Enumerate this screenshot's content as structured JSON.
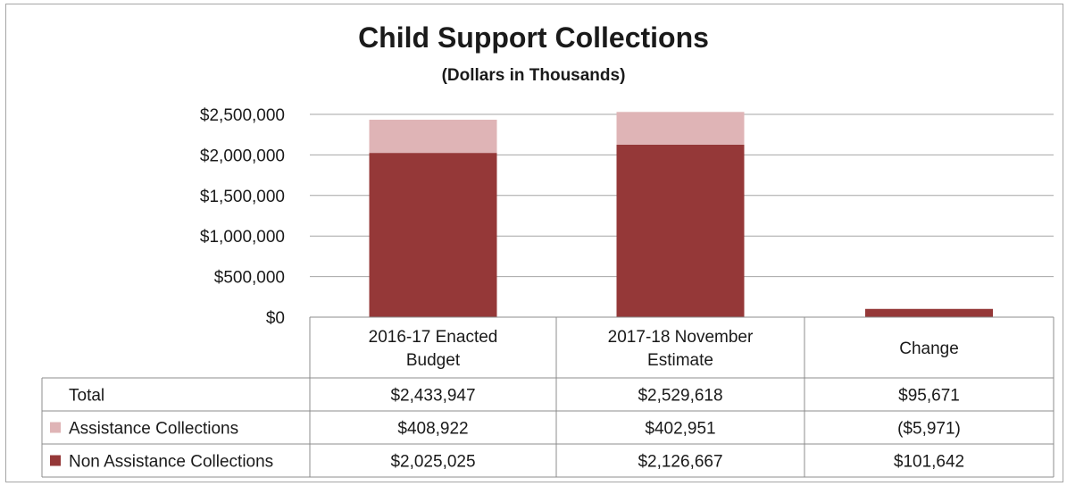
{
  "colors": {
    "assistance": "#dfb4b6",
    "non_assistance": "#953838",
    "grid": "#a6a6a6",
    "border": "#8c8c8c"
  },
  "chart_data": {
    "type": "bar",
    "stacked": true,
    "title": "Child Support Collections",
    "subtitle": "(Dollars in Thousands)",
    "categories": [
      "2016-17 Enacted Budget",
      "2017-18 November Estimate",
      "Change"
    ],
    "category_lines": [
      [
        "2016-17 Enacted",
        "Budget"
      ],
      [
        "2017-18 November",
        "Estimate"
      ],
      [
        "Change"
      ]
    ],
    "series": [
      {
        "name": "Non Assistance Collections",
        "values": [
          2025025,
          2126667,
          101642
        ]
      },
      {
        "name": "Assistance Collections",
        "values": [
          408922,
          402951,
          -5971
        ]
      }
    ],
    "yticks": [
      0,
      500000,
      1000000,
      1500000,
      2000000,
      2500000
    ],
    "ytick_labels": [
      "$0",
      "$500,000",
      "$1,000,000",
      "$1,500,000",
      "$2,000,000",
      "$2,500,000"
    ],
    "ylim": [
      0,
      2500000
    ],
    "grid": true,
    "data_table": {
      "rows": [
        {
          "label": "Total",
          "legend": false,
          "cells": [
            "$2,433,947",
            "$2,529,618",
            "$95,671"
          ]
        },
        {
          "label": "Assistance Collections",
          "legend": true,
          "series": "Assistance Collections",
          "cells": [
            "$408,922",
            "$402,951",
            "($5,971)"
          ]
        },
        {
          "label": "Non Assistance Collections",
          "legend": true,
          "series": "Non Assistance Collections",
          "cells": [
            "$2,025,025",
            "$2,126,667",
            "$101,642"
          ]
        }
      ]
    }
  }
}
